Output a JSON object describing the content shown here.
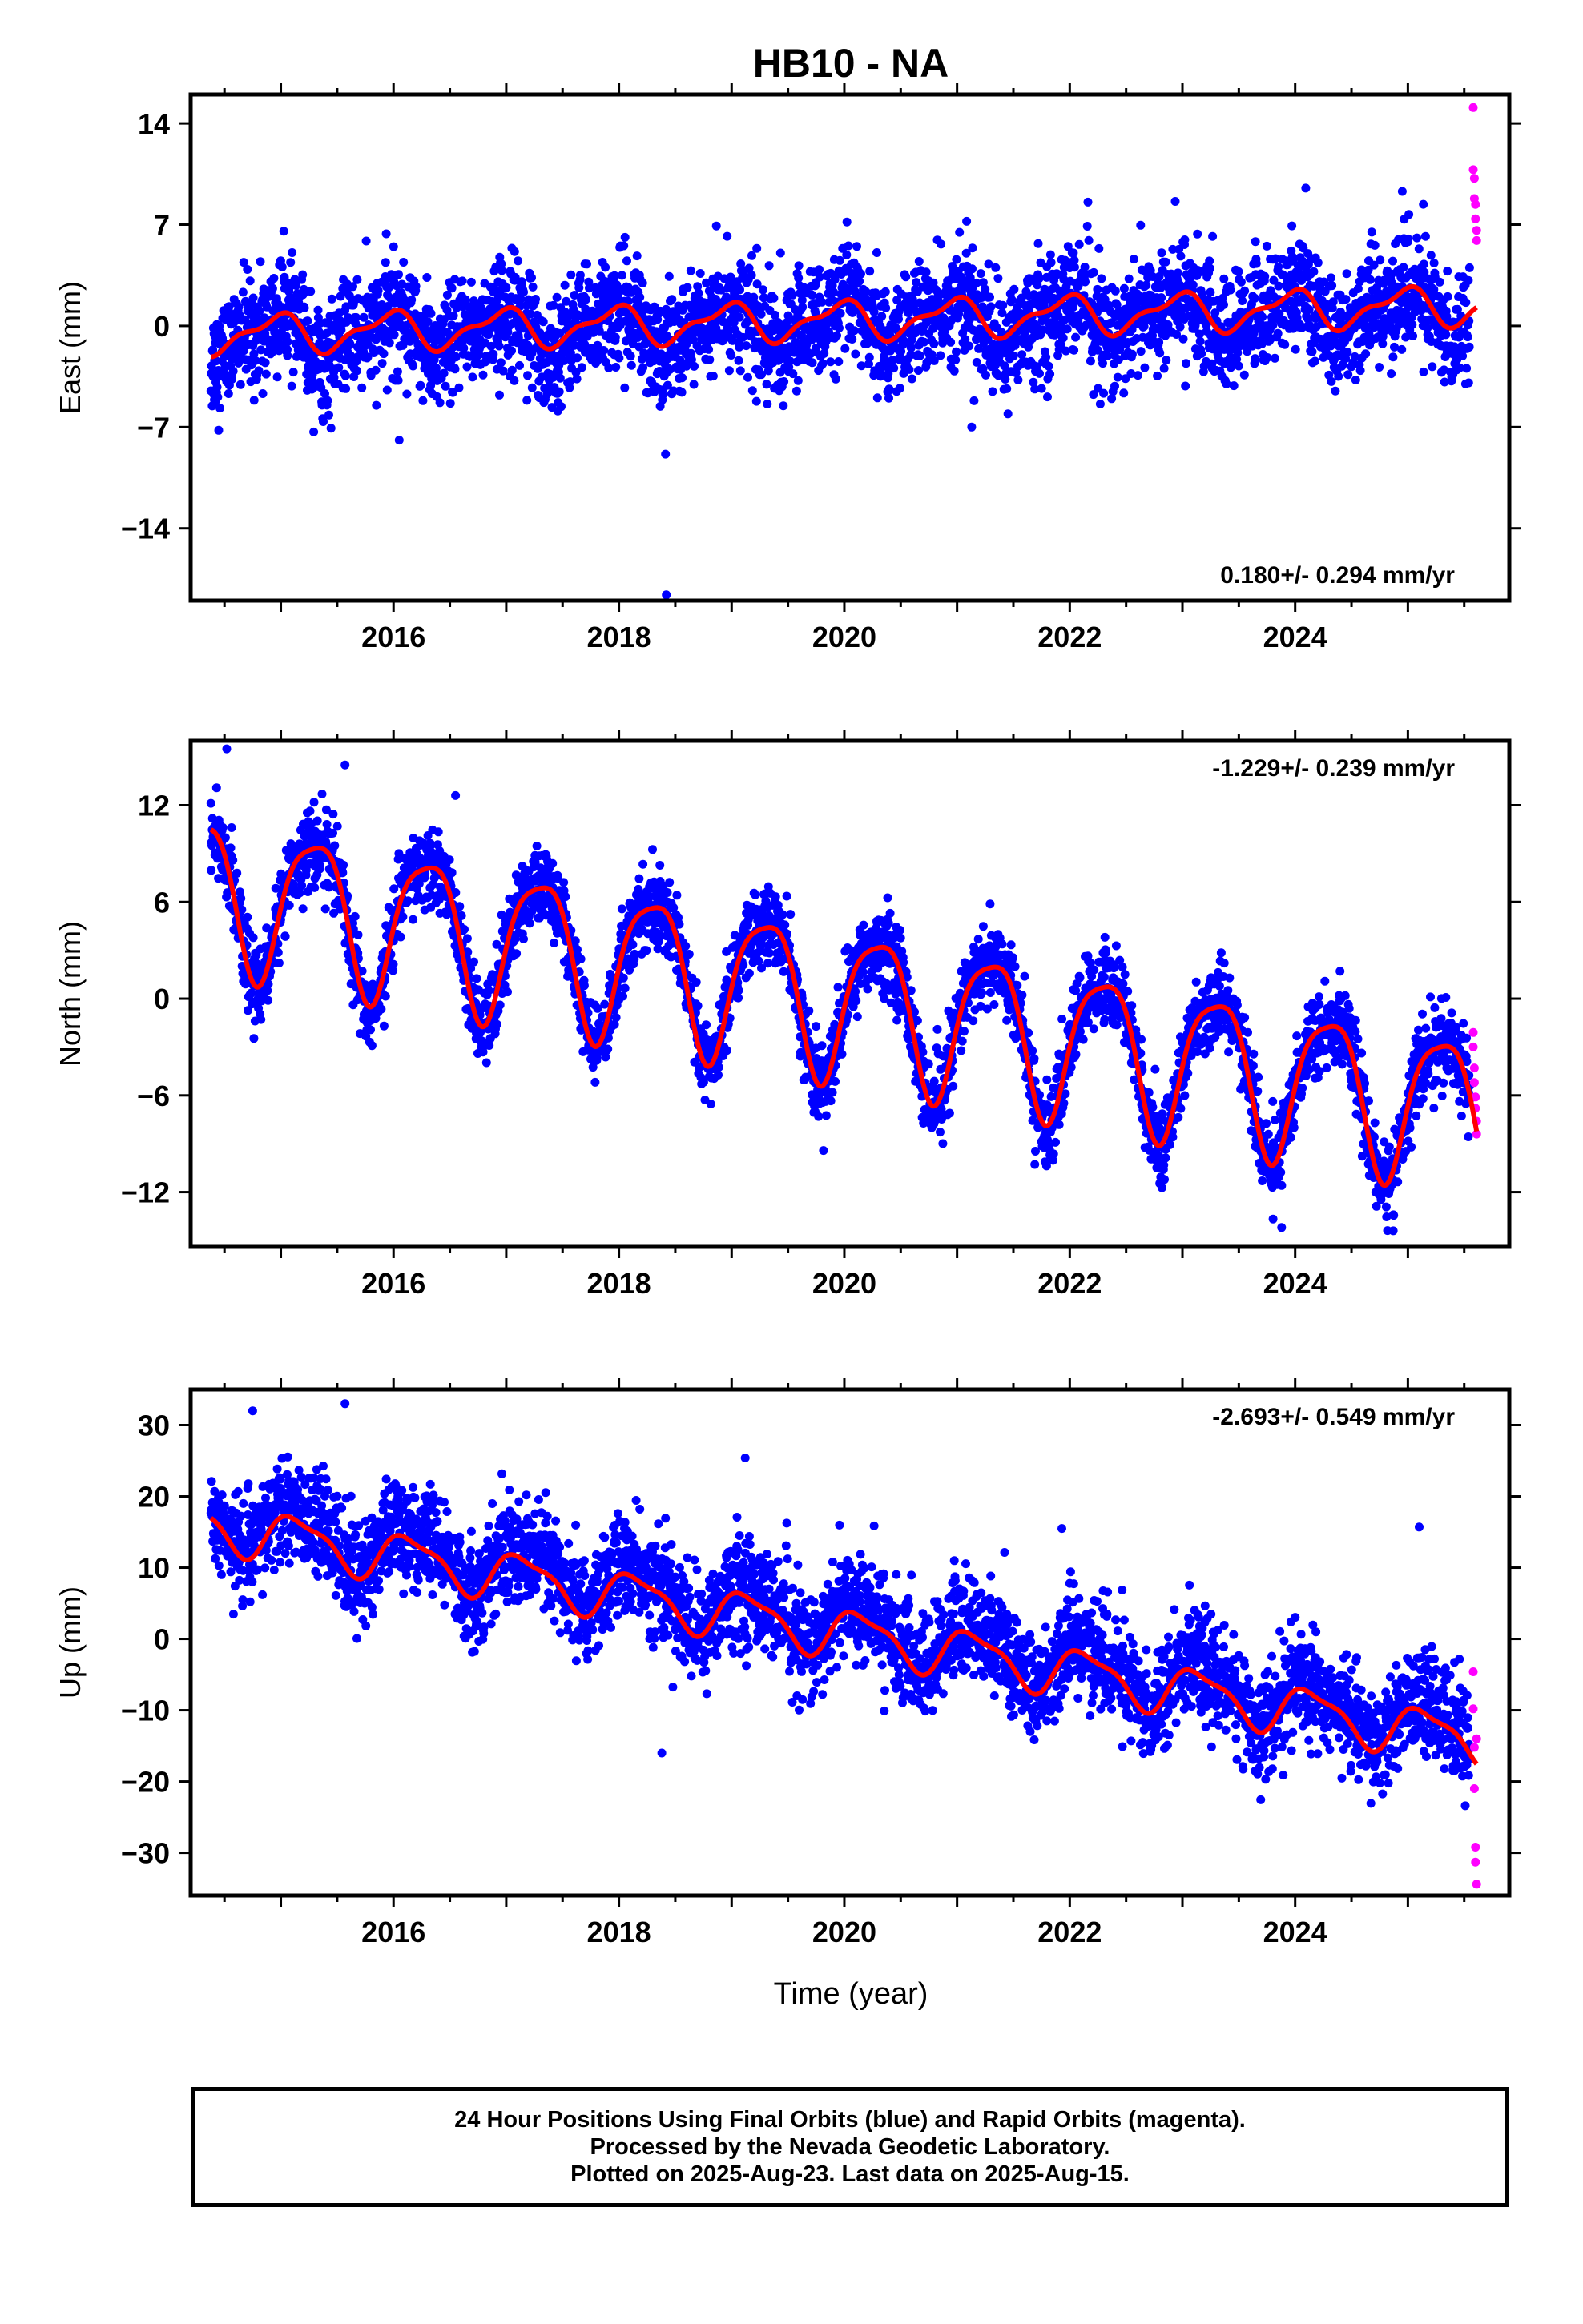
{
  "title": "HB10 - NA",
  "xlabel": "Time (year)",
  "colors": {
    "final": "#0000ff",
    "rapid": "#ff00ff",
    "model": "#ff0000",
    "frame": "#000000"
  },
  "footer": {
    "line1": "24 Hour Positions Using Final Orbits (blue) and Rapid Orbits (magenta).",
    "line2": "Processed by the Nevada Geodetic Laboratory.",
    "line3": "Plotted on 2025-Aug-23. Last data on 2025-Aug-15."
  },
  "chart_data": [
    {
      "type": "scatter",
      "component": "east",
      "ylabel": "East (mm)",
      "rate_text": "0.180+/- 0.294 mm/yr",
      "rate_position": "bottom-right",
      "xlim": [
        2014.2,
        2025.9
      ],
      "ylim": [
        -19,
        16
      ],
      "yticks": [
        -14,
        -7,
        0,
        7,
        14
      ],
      "xticks": [
        2016,
        2018,
        2020,
        2022,
        2024
      ],
      "grid": false,
      "series": [
        {
          "role": "final",
          "x_start": 2014.38,
          "x_end": 2025.55,
          "trend_start": -0.8,
          "rate": 0.18,
          "annual_amp": 1.3,
          "annual_phase": 1.9,
          "semi_amp": 0.6,
          "semi_phase": 0.4,
          "noise": 1.9
        },
        {
          "role": "rapid",
          "x": [
            2025.58,
            2025.58,
            2025.59,
            2025.59,
            2025.6,
            2025.6,
            2025.61,
            2025.61
          ],
          "y": [
            15.1,
            10.8,
            10.2,
            8.8,
            8.4,
            7.4,
            6.6,
            5.9
          ]
        },
        {
          "role": "final",
          "x": [
            2018.42,
            2016.05,
            2021.13,
            2024.95
          ],
          "y": [
            -18.6,
            -7.9,
            -7.0,
            9.3
          ]
        }
      ],
      "model": {
        "start": -0.6,
        "rate": 0.18,
        "annual_amp": 1.2,
        "annual_phase": 1.9,
        "semi_amp": 0.5,
        "semi_phase": 0.4
      }
    },
    {
      "type": "scatter",
      "component": "north",
      "ylabel": "North (mm)",
      "rate_text": "-1.229+/- 0.239 mm/yr",
      "rate_position": "top-right",
      "xlim": [
        2014.2,
        2025.9
      ],
      "ylim": [
        -15.4,
        16
      ],
      "yticks": [
        -12,
        -6,
        0,
        6,
        12
      ],
      "xticks": [
        2016,
        2018,
        2020,
        2022,
        2024
      ],
      "grid": false,
      "series": [
        {
          "role": "final",
          "x_start": 2014.38,
          "x_end": 2025.55,
          "trend_start": 6.8,
          "rate": -1.229,
          "annual_amp": 4.6,
          "annual_phase": -0.3,
          "semi_amp": 1.0,
          "semi_phase": 1.2,
          "noise": 1.2
        },
        {
          "role": "rapid",
          "x": [
            2025.58,
            2025.58,
            2025.59,
            2025.59,
            2025.6,
            2025.6,
            2025.61,
            2025.61
          ],
          "y": [
            -2.1,
            -3.0,
            -4.3,
            -5.2,
            -6.1,
            -6.8,
            -7.6,
            -8.4
          ]
        },
        {
          "role": "final",
          "x": [
            2014.52,
            2015.57,
            2016.55,
            2024.87,
            2023.88
          ],
          "y": [
            15.5,
            14.5,
            12.6,
            -14.4,
            -14.2
          ]
        }
      ],
      "model": {
        "start": 6.8,
        "rate": -1.229,
        "annual_amp": 4.6,
        "annual_phase": -0.3,
        "semi_amp": 1.0,
        "semi_phase": 1.2
      }
    },
    {
      "type": "scatter",
      "component": "up",
      "ylabel": "Up (mm)",
      "rate_text": "-2.693+/- 0.549 mm/yr",
      "rate_position": "top-right",
      "xlim": [
        2014.2,
        2025.9
      ],
      "ylim": [
        -36,
        35
      ],
      "yticks": [
        -30,
        -20,
        -10,
        0,
        10,
        20,
        30
      ],
      "xticks": [
        2016,
        2018,
        2020,
        2022,
        2024
      ],
      "grid": false,
      "series": [
        {
          "role": "final",
          "x_start": 2014.38,
          "x_end": 2025.55,
          "trend_start": 17.0,
          "rate": -2.693,
          "annual_amp": 3.4,
          "annual_phase": 0.6,
          "semi_amp": 1.0,
          "semi_phase": 2.0,
          "noise": 3.6
        },
        {
          "role": "rapid",
          "x": [
            2025.58,
            2025.58,
            2025.59,
            2025.59,
            2025.6,
            2025.6,
            2025.61,
            2025.61
          ],
          "y": [
            -4.6,
            -9.8,
            -15.2,
            -21.0,
            -29.2,
            -31.3,
            -34.4,
            -14.0
          ]
        },
        {
          "role": "final",
          "x": [
            2015.57,
            2014.75,
            2019.12,
            2018.38,
            2025.1,
            2021.93
          ],
          "y": [
            33.0,
            32.0,
            25.4,
            -16.0,
            15.7,
            15.5
          ]
        }
      ],
      "model": {
        "start": 16.0,
        "rate": -2.693,
        "annual_amp": 3.2,
        "annual_phase": 0.6,
        "semi_amp": 1.0,
        "semi_phase": 2.0
      }
    }
  ]
}
